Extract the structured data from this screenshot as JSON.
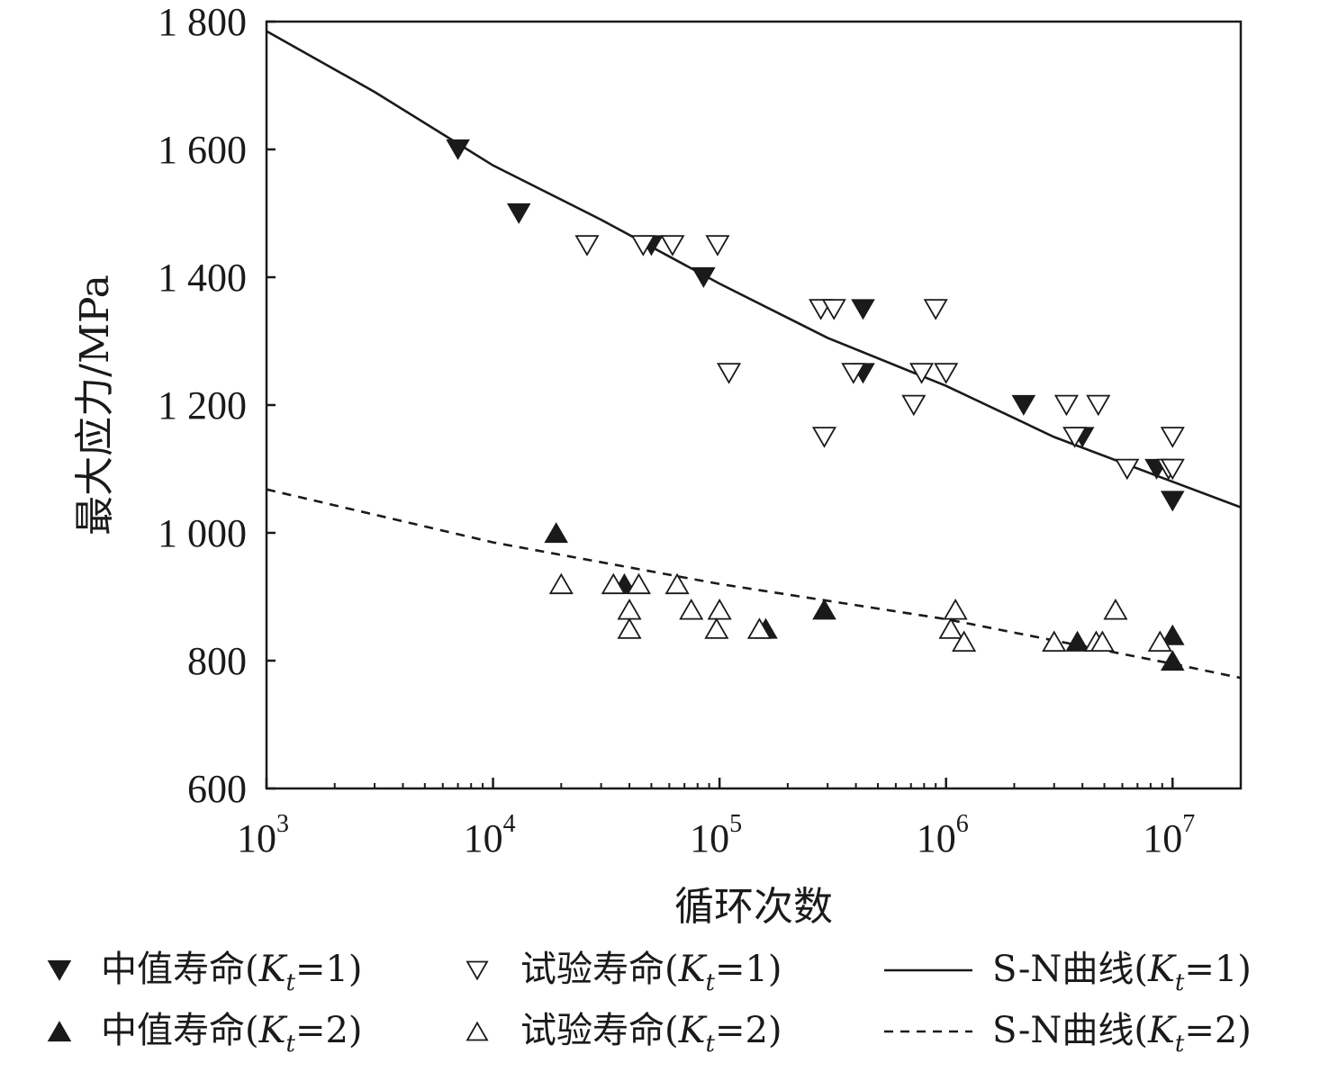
{
  "chart_data": {
    "type": "scatter",
    "xscale": "log",
    "xlim": [
      1000,
      20000000
    ],
    "ylim": [
      600,
      1800
    ],
    "xlabel": "循环次数",
    "ylabel": "最大应力/MPa",
    "grid": false,
    "legend_position": "bottom",
    "yticks": [
      {
        "value": 600,
        "label": "600"
      },
      {
        "value": 800,
        "label": "800"
      },
      {
        "value": 1000,
        "label": "1 000"
      },
      {
        "value": 1200,
        "label": "1 200"
      },
      {
        "value": 1400,
        "label": "1 400"
      },
      {
        "value": 1600,
        "label": "1 600"
      },
      {
        "value": 1800,
        "label": "1 800"
      }
    ],
    "xticks": [
      {
        "value": 1000,
        "base": "10",
        "exp": "3"
      },
      {
        "value": 10000,
        "base": "10",
        "exp": "4"
      },
      {
        "value": 100000,
        "base": "10",
        "exp": "5"
      },
      {
        "value": 1000000,
        "base": "10",
        "exp": "6"
      },
      {
        "value": 10000000,
        "base": "10",
        "exp": "7"
      }
    ],
    "series": [
      {
        "name": "中值寿命(Kt=1)",
        "legend_text": "中值寿命(",
        "legend_var": "K",
        "legend_sub": "t",
        "legend_tail": "=1)",
        "marker": "triangle-down",
        "fill": "#1a1a1a",
        "points": [
          [
            7000,
            1600
          ],
          [
            13000,
            1500
          ],
          [
            50000,
            1450
          ],
          [
            85000,
            1400
          ],
          [
            430000,
            1350
          ],
          [
            430000,
            1250
          ],
          [
            2200000,
            1200
          ],
          [
            4000000,
            1150
          ],
          [
            8500000,
            1100
          ],
          [
            10000000,
            1050
          ]
        ]
      },
      {
        "name": "试验寿命(Kt=1)",
        "legend_text": "试验寿命(",
        "legend_var": "K",
        "legend_sub": "t",
        "legend_tail": "=1)",
        "marker": "triangle-down",
        "fill": "none",
        "points": [
          [
            26000,
            1450
          ],
          [
            46000,
            1450
          ],
          [
            62000,
            1450
          ],
          [
            98000,
            1450
          ],
          [
            110000,
            1250
          ],
          [
            280000,
            1350
          ],
          [
            320000,
            1350
          ],
          [
            290000,
            1150
          ],
          [
            390000,
            1250
          ],
          [
            900000,
            1350
          ],
          [
            780000,
            1250
          ],
          [
            1000000,
            1250
          ],
          [
            720000,
            1200
          ],
          [
            3400000,
            1200
          ],
          [
            3700000,
            1150
          ],
          [
            4700000,
            1200
          ],
          [
            6300000,
            1100
          ],
          [
            9600000,
            1100
          ],
          [
            10000000,
            1150
          ],
          [
            10000000,
            1100
          ]
        ]
      },
      {
        "name": "中值寿命(Kt=2)",
        "legend_text": "中值寿命(",
        "legend_var": "K",
        "legend_sub": "t",
        "legend_tail": "=2)",
        "marker": "triangle-up",
        "fill": "#1a1a1a",
        "points": [
          [
            19000,
            1000
          ],
          [
            38000,
            920
          ],
          [
            160000,
            850
          ],
          [
            290000,
            880
          ],
          [
            3800000,
            830
          ],
          [
            10000000,
            840
          ],
          [
            10000000,
            800
          ]
        ]
      },
      {
        "name": "试验寿命(Kt=2)",
        "legend_text": "试验寿命(",
        "legend_var": "K",
        "legend_sub": "t",
        "legend_tail": "=2)",
        "marker": "triangle-up",
        "fill": "none",
        "points": [
          [
            20000,
            920
          ],
          [
            34000,
            920
          ],
          [
            44000,
            920
          ],
          [
            40000,
            880
          ],
          [
            40000,
            850
          ],
          [
            65000,
            920
          ],
          [
            75000,
            880
          ],
          [
            100000,
            880
          ],
          [
            97000,
            850
          ],
          [
            150000,
            850
          ],
          [
            1100000,
            880
          ],
          [
            1050000,
            850
          ],
          [
            1200000,
            830
          ],
          [
            3000000,
            830
          ],
          [
            4600000,
            830
          ],
          [
            4900000,
            830
          ],
          [
            5600000,
            880
          ],
          [
            8800000,
            830
          ]
        ]
      }
    ],
    "curves": [
      {
        "name": "S-N曲线(Kt=1)",
        "legend_text": "S-N曲线(",
        "legend_var": "K",
        "legend_sub": "t",
        "legend_tail": "=1)",
        "style": "solid",
        "points": [
          [
            1000,
            1785
          ],
          [
            3000,
            1690
          ],
          [
            10000,
            1575
          ],
          [
            30000,
            1490
          ],
          [
            100000,
            1390
          ],
          [
            300000,
            1305
          ],
          [
            1000000,
            1230
          ],
          [
            3000000,
            1150
          ],
          [
            10000000,
            1080
          ],
          [
            20000000,
            1040
          ]
        ]
      },
      {
        "name": "S-N曲线(Kt=2)",
        "legend_text": "S-N曲线(",
        "legend_var": "K",
        "legend_sub": "t",
        "legend_tail": "=2)",
        "style": "dashed",
        "points": [
          [
            1000,
            1068
          ],
          [
            10000,
            985
          ],
          [
            100000,
            920
          ],
          [
            1000000,
            865
          ],
          [
            10000000,
            795
          ],
          [
            20000000,
            773
          ]
        ]
      }
    ]
  }
}
